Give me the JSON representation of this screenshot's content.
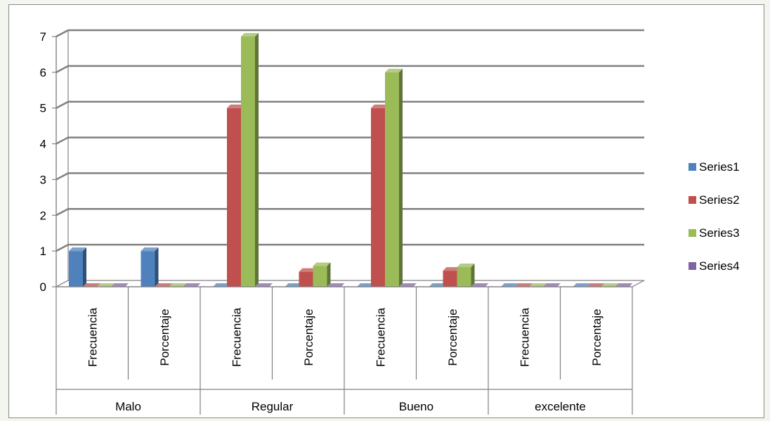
{
  "chart_data": {
    "type": "bar",
    "title": "",
    "xlabel": "",
    "ylabel": "",
    "ylim": [
      0,
      7
    ],
    "yticks": [
      0,
      1,
      2,
      3,
      4,
      5,
      6,
      7
    ],
    "grid": true,
    "legend_position": "right",
    "groups": [
      {
        "label": "Malo",
        "categories": [
          "Frecuencia",
          "Porcentaje"
        ]
      },
      {
        "label": "Regular",
        "categories": [
          "Frecuencia",
          "Porcentaje"
        ]
      },
      {
        "label": "Bueno",
        "categories": [
          "Frecuencia",
          "Porcentaje"
        ]
      },
      {
        "label": "excelente",
        "categories": [
          "Frecuencia",
          "Porcentaje"
        ]
      }
    ],
    "series": [
      {
        "name": "Series1",
        "color": "#4f81bd",
        "values": [
          1,
          1,
          0,
          0,
          0,
          0,
          0,
          0
        ]
      },
      {
        "name": "Series2",
        "color": "#c0504d",
        "values": [
          0,
          0,
          5,
          0.42,
          5,
          0.45,
          0,
          0
        ]
      },
      {
        "name": "Series3",
        "color": "#9bbb59",
        "values": [
          0,
          0,
          7,
          0.58,
          6,
          0.55,
          0,
          0
        ]
      },
      {
        "name": "Series4",
        "color": "#8064a2",
        "values": [
          0,
          0,
          0,
          0,
          0,
          0,
          0,
          0
        ]
      }
    ]
  }
}
